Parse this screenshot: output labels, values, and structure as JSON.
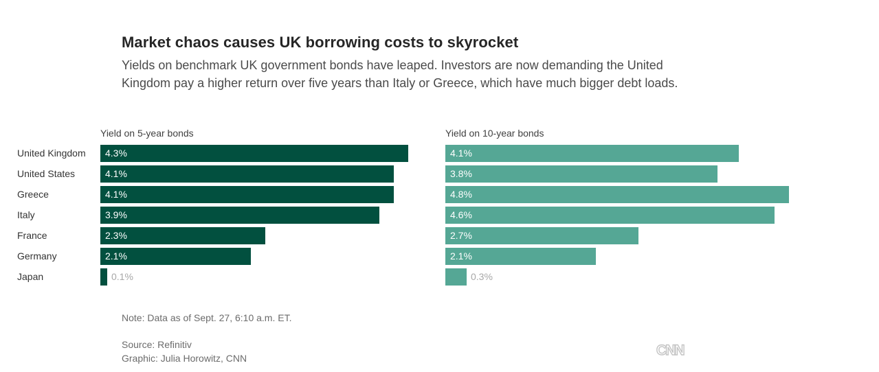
{
  "title": "Market chaos causes UK borrowing costs to skyrocket",
  "subtitle": "Yields on benchmark UK government bonds have leaped. Investors are now demanding the United Kingdom pay a higher return over five years than Italy or Greece, which have much bigger debt loads.",
  "note": "Note: Data as of Sept. 27, 6:10 a.m. ET.",
  "source": "Source: Refinitiv",
  "credit": "Graphic: Julia Horowitz, CNN",
  "logo_text": "CNN",
  "colors": {
    "five_year": "#02503f",
    "ten_year": "#55a795"
  },
  "chart_data": [
    {
      "type": "bar",
      "orientation": "horizontal",
      "title": "Yield on 5-year bonds",
      "categories": [
        "United Kingdom",
        "United States",
        "Greece",
        "Italy",
        "France",
        "Germany",
        "Japan"
      ],
      "values": [
        4.3,
        4.1,
        4.1,
        3.9,
        2.3,
        2.1,
        0.1
      ],
      "labels": [
        "4.3%",
        "4.1%",
        "4.1%",
        "3.9%",
        "2.3%",
        "2.1%",
        "0.1%"
      ],
      "color": "#02503f",
      "xlim": [
        0,
        5.5
      ]
    },
    {
      "type": "bar",
      "orientation": "horizontal",
      "title": "Yield on 10-year bonds",
      "categories": [
        "United Kingdom",
        "United States",
        "Greece",
        "Italy",
        "France",
        "Germany",
        "Japan"
      ],
      "values": [
        4.1,
        3.8,
        4.8,
        4.6,
        2.7,
        2.1,
        0.3
      ],
      "labels": [
        "4.1%",
        "3.8%",
        "4.8%",
        "4.6%",
        "2.7%",
        "2.1%",
        "0.3%"
      ],
      "color": "#55a795",
      "xlim": [
        0,
        5.5
      ]
    }
  ]
}
